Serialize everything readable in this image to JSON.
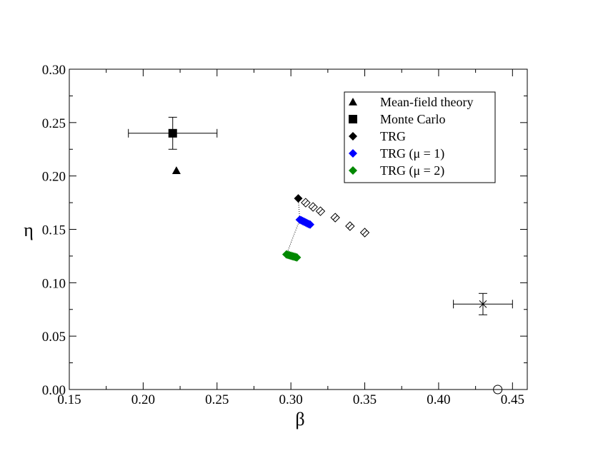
{
  "chart_data": {
    "type": "scatter",
    "title": "",
    "xlabel": "β",
    "ylabel": "η",
    "xlim": [
      0.15,
      0.46
    ],
    "ylim": [
      0.0,
      0.3
    ],
    "grid": false,
    "legend_position": "top-right",
    "x_ticks": [
      0.15,
      0.2,
      0.25,
      0.3,
      0.35,
      0.4,
      0.45
    ],
    "x_tick_labels": [
      "0.15",
      "0.20",
      "0.25",
      "0.30",
      "0.35",
      "0.40",
      "0.45"
    ],
    "y_ticks": [
      0.0,
      0.05,
      0.1,
      0.15,
      0.2,
      0.25,
      0.3
    ],
    "y_tick_labels": [
      "0.00",
      "0.05",
      "0.10",
      "0.15",
      "0.20",
      "0.25",
      "0.30"
    ],
    "series": [
      {
        "name": "Mean-field theory",
        "marker": "triangle",
        "color": "#000000",
        "filled": true,
        "points": [
          {
            "x": 0.2225,
            "y": 0.205
          }
        ]
      },
      {
        "name": "Monte Carlo",
        "marker": "square",
        "color": "#000000",
        "filled": true,
        "points": [
          {
            "x": 0.22,
            "y": 0.24,
            "xerr": 0.03,
            "yerr": 0.015
          }
        ]
      },
      {
        "name": "TRG",
        "marker": "diamond",
        "color": "#000000",
        "filled": true,
        "points": [
          {
            "x": 0.305,
            "y": 0.179
          }
        ]
      },
      {
        "name": "TRG (μ = 1)",
        "marker": "diamond",
        "color": "#0000ff",
        "filled": true,
        "points": [
          {
            "x": 0.306,
            "y": 0.159
          },
          {
            "x": 0.307,
            "y": 0.1585
          },
          {
            "x": 0.308,
            "y": 0.1578
          },
          {
            "x": 0.309,
            "y": 0.1571
          },
          {
            "x": 0.31,
            "y": 0.1564
          },
          {
            "x": 0.311,
            "y": 0.1557
          },
          {
            "x": 0.312,
            "y": 0.155
          },
          {
            "x": 0.313,
            "y": 0.1545
          }
        ]
      },
      {
        "name": "TRG (μ = 2)",
        "marker": "diamond",
        "color": "#008800",
        "filled": true,
        "points": [
          {
            "x": 0.297,
            "y": 0.1265
          },
          {
            "x": 0.298,
            "y": 0.1261
          },
          {
            "x": 0.299,
            "y": 0.1257
          },
          {
            "x": 0.3,
            "y": 0.1253
          },
          {
            "x": 0.301,
            "y": 0.1249
          },
          {
            "x": 0.302,
            "y": 0.1245
          },
          {
            "x": 0.303,
            "y": 0.1241
          },
          {
            "x": 0.304,
            "y": 0.1237
          }
        ]
      }
    ],
    "extra_series": [
      {
        "name": "TRG open diamonds",
        "marker": "diamond-open",
        "color": "#000000",
        "points": [
          {
            "x": 0.31,
            "y": 0.175
          },
          {
            "x": 0.315,
            "y": 0.171
          },
          {
            "x": 0.32,
            "y": 0.167
          },
          {
            "x": 0.33,
            "y": 0.161
          },
          {
            "x": 0.34,
            "y": 0.153
          },
          {
            "x": 0.35,
            "y": 0.147
          }
        ]
      },
      {
        "name": "star point",
        "marker": "star",
        "color": "#000000",
        "points": [
          {
            "x": 0.43,
            "y": 0.08,
            "xerr": 0.02,
            "yerr": 0.01
          }
        ]
      },
      {
        "name": "circle point",
        "marker": "circle-open",
        "color": "#000000",
        "points": [
          {
            "x": 0.44,
            "y": 0.0
          }
        ]
      }
    ],
    "dotted_lines": [
      [
        {
          "x": 0.305,
          "y": 0.179
        },
        {
          "x": 0.306,
          "y": 0.159
        }
      ],
      [
        {
          "x": 0.306,
          "y": 0.159
        },
        {
          "x": 0.297,
          "y": 0.1265
        }
      ]
    ]
  }
}
